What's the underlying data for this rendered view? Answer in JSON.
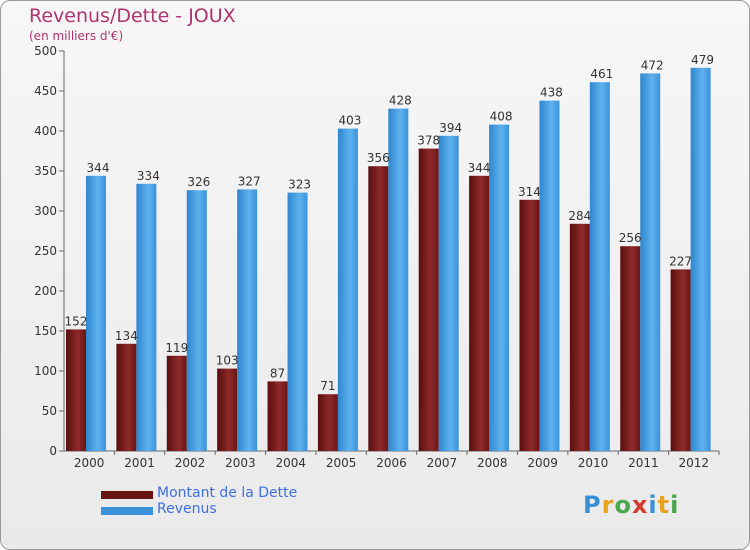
{
  "title": "Revenus/Dette - JOUX",
  "subtitle": "(en milliers d'€)",
  "logo": {
    "text": "Proxiti",
    "colors": [
      "#3a8fd9",
      "#e8a21d",
      "#4aa84a",
      "#d33b2f",
      "#3a8fd9",
      "#e8a21d",
      "#4aa84a"
    ]
  },
  "chart_data": {
    "type": "bar",
    "title": "Revenus/Dette - JOUX",
    "subtitle": "(en milliers d'€)",
    "categories": [
      "2000",
      "2001",
      "2002",
      "2003",
      "2004",
      "2005",
      "2006",
      "2007",
      "2008",
      "2009",
      "2010",
      "2011",
      "2012"
    ],
    "series": [
      {
        "name": "Montant de la Dette",
        "color": "#7a1c1c",
        "values": [
          152,
          134,
          119,
          103,
          87,
          71,
          356,
          378,
          344,
          314,
          284,
          256,
          227
        ]
      },
      {
        "name": "Revenus",
        "color": "#4fa3e6",
        "values": [
          344,
          334,
          326,
          327,
          323,
          403,
          428,
          394,
          408,
          438,
          461,
          472,
          479
        ]
      }
    ],
    "yticks": [
      0,
      50,
      100,
      150,
      200,
      250,
      300,
      350,
      400,
      450,
      500
    ],
    "ylim": [
      0,
      500
    ],
    "grid": false,
    "legend": "bottom-left"
  }
}
